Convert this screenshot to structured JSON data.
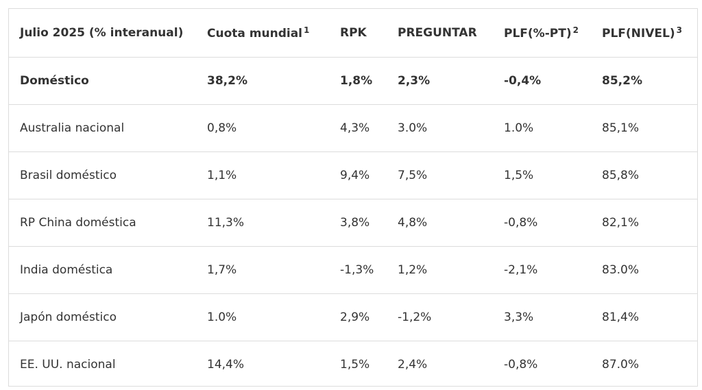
{
  "table": {
    "headers": [
      {
        "label": "Julio 2025 (% interanual)",
        "sup": ""
      },
      {
        "label": "Cuota mundial",
        "sup": "1"
      },
      {
        "label": "RPK",
        "sup": ""
      },
      {
        "label": "PREGUNTAR",
        "sup": ""
      },
      {
        "label": "PLF(%-PT)",
        "sup": "2"
      },
      {
        "label": "PLF(NIVEL)",
        "sup": "3"
      }
    ],
    "rows": [
      {
        "bold": true,
        "cells": [
          "Doméstico",
          "38,2%",
          "1,8%",
          "2,3%",
          "-0,4%",
          "85,2%"
        ]
      },
      {
        "bold": false,
        "cells": [
          "Australia nacional",
          "0,8%",
          "4,3%",
          "3.0%",
          "1.0%",
          "85,1%"
        ]
      },
      {
        "bold": false,
        "cells": [
          "Brasil doméstico",
          "1,1%",
          "9,4%",
          "7,5%",
          "1,5%",
          "85,8%"
        ]
      },
      {
        "bold": false,
        "cells": [
          "RP China doméstica",
          "11,3%",
          "3,8%",
          "4,8%",
          "-0,8%",
          "82,1%"
        ]
      },
      {
        "bold": false,
        "cells": [
          "India doméstica",
          "1,7%",
          "-1,3%",
          "1,2%",
          "-2,1%",
          "83.0%"
        ]
      },
      {
        "bold": false,
        "cells": [
          "Japón doméstico",
          "1.0%",
          "2,9%",
          "-1,2%",
          "3,3%",
          "81,4%"
        ]
      },
      {
        "bold": false,
        "cells": [
          "EE. UU. nacional",
          "14,4%",
          "1,5%",
          "2,4%",
          "-0,8%",
          "87.0%"
        ]
      }
    ]
  }
}
